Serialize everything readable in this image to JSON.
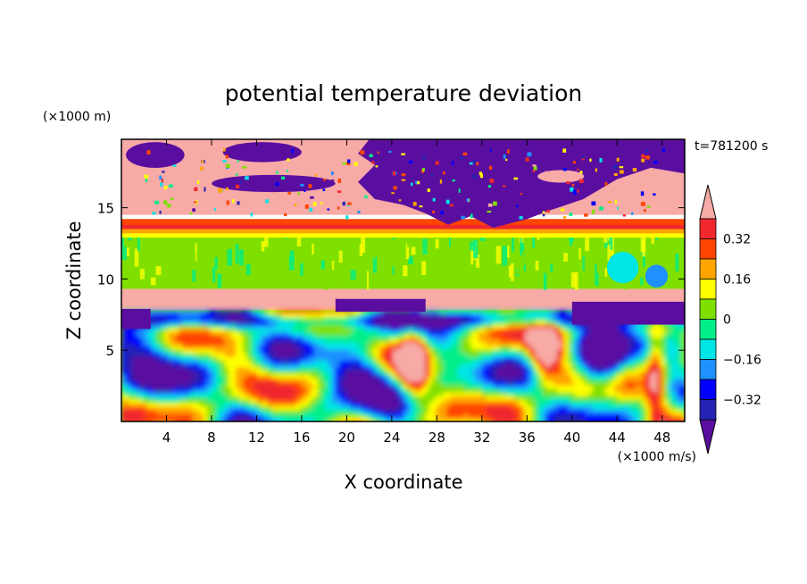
{
  "chart_data": {
    "type": "heatmap",
    "title": "potential temperature deviation",
    "xlabel": "X coordinate",
    "ylabel": "Z coordinate",
    "x_unit": "(×1000 m/s)",
    "y_unit": "(×1000 m)",
    "time_label": "t=781200 s",
    "xlim": [
      0,
      50
    ],
    "ylim": [
      0,
      19.8
    ],
    "x_ticks": [
      4,
      8,
      12,
      16,
      20,
      24,
      28,
      32,
      36,
      40,
      44,
      48
    ],
    "y_ticks": [
      5,
      10,
      15
    ],
    "colorbar": {
      "labels": [
        "0.32",
        "0.16",
        "0",
        "−0.16",
        "−0.32"
      ],
      "label_values": [
        0.32,
        0.16,
        0,
        -0.16,
        -0.32
      ],
      "levels": [
        -0.4,
        -0.32,
        -0.24,
        -0.16,
        -0.08,
        0,
        0.08,
        0.16,
        0.24,
        0.32,
        0.4
      ],
      "colors": [
        "#5a0ea0",
        "#2424b4",
        "#0000ff",
        "#1e90ff",
        "#00e5e5",
        "#00ee88",
        "#7fe000",
        "#ffff00",
        "#ffa500",
        "#ff4500",
        "#f0282d",
        "#f7aaa6"
      ]
    },
    "layers": [
      {
        "name": "upper band",
        "z_range": [
          14.5,
          19.8
        ],
        "dominant_value": 0.42
      },
      {
        "name": "warm strip",
        "z_range": [
          13.2,
          14.2
        ],
        "dominant_value": 0.3
      },
      {
        "name": "middle band",
        "z_range": [
          9.3,
          13.2
        ],
        "dominant_value": 0.05
      },
      {
        "name": "pink strip",
        "z_range": [
          7.8,
          9.3
        ],
        "dominant_value": 0.42
      },
      {
        "name": "lower turbulent band",
        "z_range": [
          0,
          7.8
        ],
        "dominant_value": 0.0
      }
    ]
  }
}
